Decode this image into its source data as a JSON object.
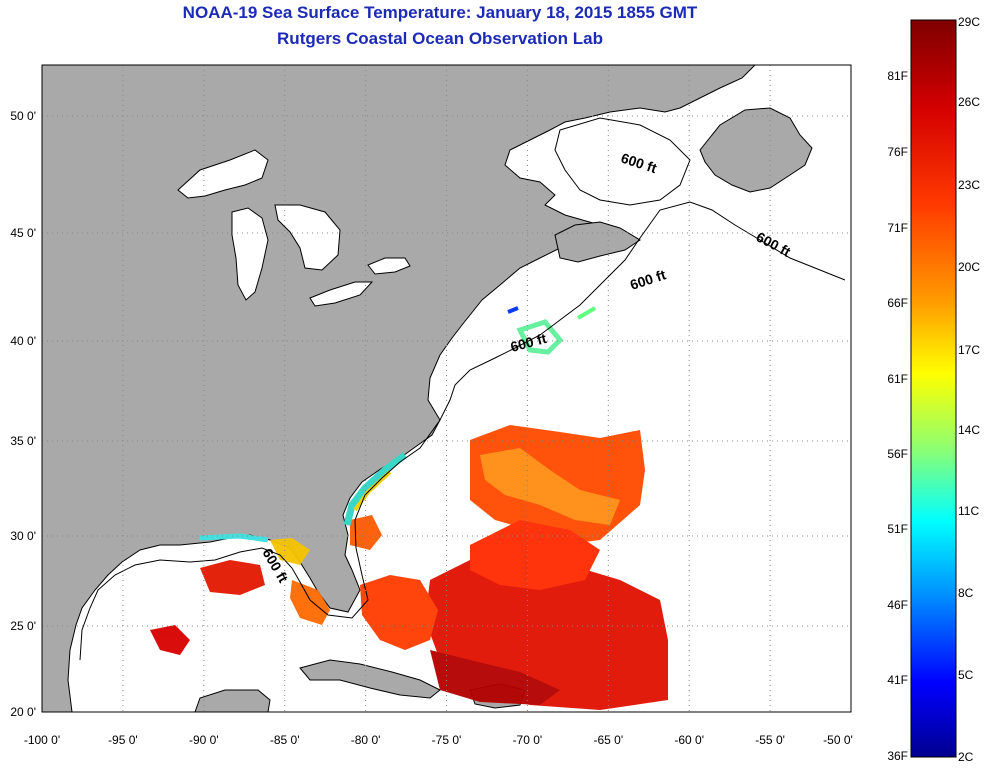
{
  "header": {
    "title": "NOAA-19 Sea Surface Temperature:  January 18, 2015 1855 GMT",
    "subtitle": "Rutgers Coastal Ocean Observation Lab"
  },
  "axes": {
    "lon_labels": [
      "-100 0'",
      "-95 0'",
      "-90 0'",
      "-85 0'",
      "-80 0'",
      "-75 0'",
      "-70 0'",
      "-65 0'",
      "-60 0'",
      "-55 0'",
      "-50 0'"
    ],
    "lon_values": [
      -100,
      -95,
      -90,
      -85,
      -80,
      -75,
      -70,
      -65,
      -60,
      -55,
      -50
    ],
    "lat_labels": [
      "50 0'",
      "45 0'",
      "40 0'",
      "35 0'",
      "30 0'",
      "25 0'",
      "20 0'"
    ],
    "lat_values": [
      50,
      45,
      40,
      35,
      30,
      25,
      20
    ]
  },
  "contours": {
    "label": "600 ft",
    "labels": [
      "600 ft",
      "600 ft",
      "600 ft",
      "600 ft",
      "600 ft"
    ]
  },
  "colorbar": {
    "celsius": [
      "29C",
      "26C",
      "23C",
      "20C",
      "17C",
      "14C",
      "11C",
      "8C",
      "5C",
      "2C"
    ],
    "fahrenheit": [
      "81F",
      "76F",
      "71F",
      "66F",
      "61F",
      "56F",
      "51F",
      "46F",
      "41F",
      "36F"
    ]
  },
  "colors": {
    "land": "#a9a9a9",
    "title": "#1c2bb5",
    "colormap": [
      "#7f0000",
      "#ff0000",
      "#ff8000",
      "#ffff00",
      "#80ff80",
      "#00ffff",
      "#0080ff",
      "#0000ff",
      "#00008f"
    ]
  }
}
